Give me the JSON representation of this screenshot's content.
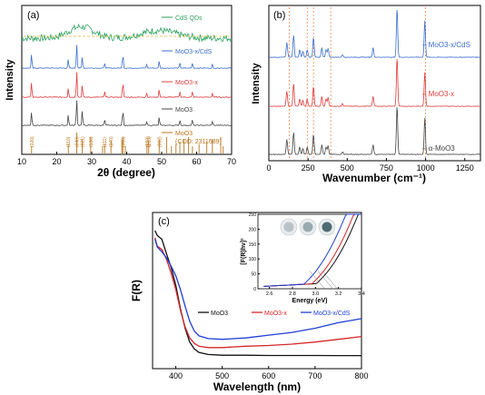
{
  "chart_data": [
    {
      "panel": "(a)",
      "type": "line",
      "xlabel": "2θ (degree)",
      "ylabel": "Intensity",
      "xlim": [
        10,
        70
      ],
      "x_ticks": [
        "10",
        "20",
        "30",
        "40",
        "50",
        "60",
        "70"
      ],
      "series": [
        {
          "name": "CdS QDs",
          "color": "#2ca25f",
          "broad_peaks_2theta": [
            26.5,
            44.0,
            52.0
          ],
          "baseline_level": "top"
        },
        {
          "name": "MoO3-x/CdS",
          "color": "#3b6fd1",
          "peaks_2theta": [
            12.8,
            23.3,
            25.7,
            27.3,
            33.7,
            38.9,
            45.7,
            49.3,
            55.2,
            58.8,
            64.5
          ],
          "peak_rel_height": [
            0.55,
            0.35,
            1.0,
            0.45,
            0.2,
            0.6,
            0.15,
            0.3,
            0.2,
            0.2,
            0.15
          ]
        },
        {
          "name": "MoO3-x",
          "color": "#e03c3c",
          "peaks_2theta": [
            12.8,
            23.3,
            25.7,
            27.3,
            33.7,
            38.9,
            45.7,
            49.3,
            55.2,
            58.8,
            64.5
          ],
          "peak_rel_height": [
            0.55,
            0.35,
            1.0,
            0.45,
            0.2,
            0.6,
            0.15,
            0.3,
            0.2,
            0.2,
            0.15
          ]
        },
        {
          "name": "MoO3",
          "color": "#444444",
          "peaks_2theta": [
            12.8,
            23.3,
            25.7,
            27.3,
            33.7,
            38.9,
            45.7,
            49.3,
            55.2,
            58.8,
            64.5
          ],
          "peak_rel_height": [
            0.5,
            0.4,
            1.0,
            0.55,
            0.2,
            0.6,
            0.15,
            0.3,
            0.2,
            0.2,
            0.15
          ]
        }
      ],
      "reference": {
        "name": "MoO3",
        "card": "(COD: 2311689)",
        "color": "#b8741a",
        "lines_2theta": [
          12.8,
          23.3,
          25.7,
          27.3,
          29.7,
          33.1,
          33.7,
          35.5,
          38.6,
          38.9,
          39.6,
          45.8,
          46.3,
          49.3,
          51.4,
          52.8,
          54.1,
          55.2,
          56.4,
          57.7,
          58.8,
          60.7,
          62.9,
          64.5,
          66.9,
          67.6
        ],
        "hkl_labels": [
          {
            "text": "(020)",
            "x": 12.8
          },
          {
            "text": "(110)",
            "x": 23.3
          },
          {
            "text": "(040)",
            "x": 25.7
          },
          {
            "text": "(021)",
            "x": 27.3
          },
          {
            "text": "(130)",
            "x": 29.7
          },
          {
            "text": "(111)",
            "x": 33.7
          },
          {
            "text": "(140)",
            "x": 35.5
          },
          {
            "text": "(060)",
            "x": 38.9
          },
          {
            "text": "(150)",
            "x": 45.8
          },
          {
            "text": "(210)",
            "x": 46.3
          },
          {
            "text": "(002)",
            "x": 49.3
          }
        ]
      }
    },
    {
      "panel": "(b)",
      "type": "line",
      "xlabel": "Wavenumber (cm⁻¹)",
      "ylabel": "",
      "xlim": [
        0,
        1350
      ],
      "x_ticks": [
        "0",
        "250",
        "500",
        "750",
        "1000",
        "1250"
      ],
      "dashed_markers": [
        130,
        245,
        285,
        395,
        1000
      ],
      "series": [
        {
          "name": "MoO3-x/CdS",
          "color": "#3b6fd1",
          "peaks_cm": [
            115,
            158,
            197,
            217,
            245,
            285,
            338,
            365,
            378,
            470,
            665,
            818,
            995
          ],
          "peak_rel_height": [
            0.3,
            0.45,
            0.15,
            0.12,
            0.15,
            0.4,
            0.2,
            0.15,
            0.18,
            0.05,
            0.2,
            1.0,
            0.75
          ]
        },
        {
          "name": "MoO3-x",
          "color": "#e03c3c",
          "peaks_cm": [
            115,
            158,
            197,
            217,
            245,
            285,
            338,
            365,
            378,
            470,
            665,
            818,
            995
          ],
          "peak_rel_height": [
            0.3,
            0.45,
            0.15,
            0.12,
            0.15,
            0.4,
            0.2,
            0.15,
            0.18,
            0.05,
            0.2,
            1.0,
            0.7
          ]
        },
        {
          "name": "α-MoO3",
          "color": "#444444",
          "peaks_cm": [
            115,
            158,
            197,
            217,
            245,
            285,
            338,
            365,
            378,
            470,
            665,
            818,
            995
          ],
          "peak_rel_height": [
            0.3,
            0.45,
            0.15,
            0.12,
            0.15,
            0.4,
            0.2,
            0.15,
            0.18,
            0.05,
            0.2,
            1.0,
            0.75
          ]
        }
      ]
    },
    {
      "panel": "(c)",
      "type": "line",
      "xlabel": "Wavelength (nm)",
      "ylabel": "F(R)",
      "xlim": [
        350,
        800
      ],
      "x_ticks": [
        "400",
        "500",
        "600",
        "700",
        "800"
      ],
      "series": [
        {
          "name": "MoO3",
          "color": "#111111",
          "x": [
            355,
            360,
            370,
            380,
            390,
            400,
            410,
            420,
            430,
            440,
            450,
            470,
            500,
            550,
            600,
            650,
            700,
            750,
            800
          ],
          "y": [
            0.93,
            0.91,
            0.86,
            0.78,
            0.68,
            0.55,
            0.38,
            0.24,
            0.14,
            0.09,
            0.065,
            0.05,
            0.045,
            0.045,
            0.043,
            0.043,
            0.043,
            0.042,
            0.042
          ]
        },
        {
          "name": "MoO3-x",
          "color": "#d62728",
          "x": [
            355,
            360,
            370,
            380,
            390,
            400,
            410,
            420,
            430,
            440,
            450,
            470,
            500,
            550,
            600,
            650,
            700,
            750,
            800
          ],
          "y": [
            0.9,
            0.87,
            0.82,
            0.74,
            0.64,
            0.52,
            0.37,
            0.25,
            0.17,
            0.13,
            0.11,
            0.1,
            0.1,
            0.11,
            0.115,
            0.125,
            0.14,
            0.16,
            0.18
          ]
        },
        {
          "name": "MoO3-x/CdS",
          "color": "#1f3fd4",
          "x": [
            355,
            360,
            370,
            380,
            390,
            400,
            410,
            420,
            430,
            440,
            450,
            470,
            500,
            550,
            600,
            650,
            700,
            750,
            800
          ],
          "y": [
            0.88,
            0.86,
            0.81,
            0.75,
            0.69,
            0.62,
            0.52,
            0.4,
            0.29,
            0.22,
            0.185,
            0.165,
            0.16,
            0.17,
            0.19,
            0.21,
            0.24,
            0.28,
            0.31
          ]
        }
      ],
      "inset": {
        "xlabel": "Energy (eV)",
        "ylabel": "[F(R)hν]²",
        "xlim": [
          2.5,
          3.4
        ],
        "ylim": [
          0,
          250
        ],
        "x_ticks": [
          "2.6",
          "2.8",
          "3.0",
          "3.2",
          "3.4"
        ],
        "y_ticks": [
          "0",
          "50",
          "100",
          "150",
          "200",
          "250"
        ],
        "series": [
          {
            "name": "MoO3",
            "color": "#111111",
            "Eg": 3.16
          },
          {
            "name": "MoO3-x",
            "color": "#d62728",
            "Eg": 3.12
          },
          {
            "name": "MoO3-x/CdS",
            "color": "#1f3fd4",
            "Eg": 3.05
          }
        ],
        "photo_colors": [
          "#b9c2c6",
          "#9aa9b0",
          "#4f6b72"
        ]
      }
    }
  ],
  "labels": {
    "panel_a": "(a)",
    "panel_b": "(b)",
    "panel_c": "(c)",
    "a_xlabel_theta": "2θ (degree)",
    "a_ylabel": "Intensity",
    "b_xlabel": "Wavenumber (cm⁻¹)",
    "b_ylabel": "Intensity",
    "c_xlabel": "Wavelength (nm)",
    "c_ylabel": "F(R)",
    "inset_xlabel": "Energy (eV)",
    "inset_ylabel": "[F(R)hν]²"
  }
}
